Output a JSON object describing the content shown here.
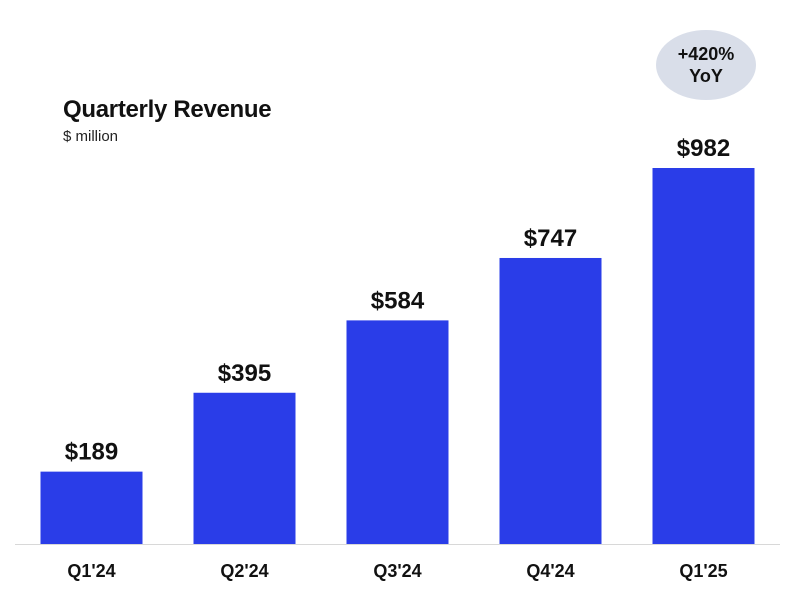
{
  "chart_data": {
    "type": "bar",
    "title": "Quarterly Revenue",
    "subtitle": "$ million",
    "categories": [
      "Q1'24",
      "Q2'24",
      "Q3'24",
      "Q4'24",
      "Q1'25"
    ],
    "values": [
      189,
      395,
      584,
      747,
      982
    ],
    "data_labels": [
      "$189",
      "$395",
      "$584",
      "$747",
      "$982"
    ],
    "ylim": [
      0,
      982
    ],
    "grid": false,
    "bar_color": "#2a3de8",
    "annotation": {
      "line1": "+420%",
      "line2": "YoY"
    }
  }
}
